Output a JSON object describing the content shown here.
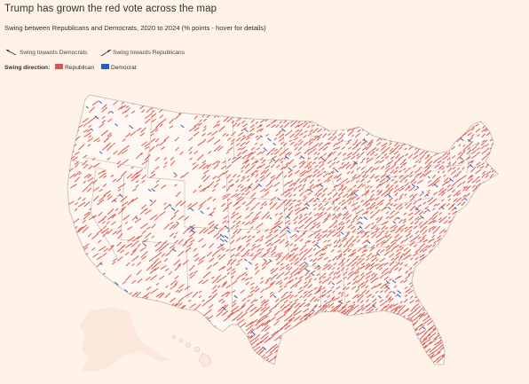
{
  "header": {
    "title": "Trump has grown the red vote across the map",
    "subtitle": "Swing between Republicans and Democrats, 2020 to 2024 (% points - hover for details)"
  },
  "legend": {
    "arrow_dem_label": "Swing towards Democrats",
    "arrow_rep_label": "Swing towards Republicans",
    "direction_label": "Swing direction:",
    "republican_label": "Republican",
    "democrat_label": "Democrat"
  },
  "colors": {
    "background": "#fff2e6",
    "land": "#fff8f2",
    "state_border": "#c9c3be",
    "republican": "#d9584f",
    "democrat": "#2b5cb8",
    "text": "#33302e"
  },
  "map": {
    "region": "United States (counties)",
    "encoding": "one arrow per county; arrow length = size of swing; direction = party",
    "dominant_swing": "Republican"
  }
}
